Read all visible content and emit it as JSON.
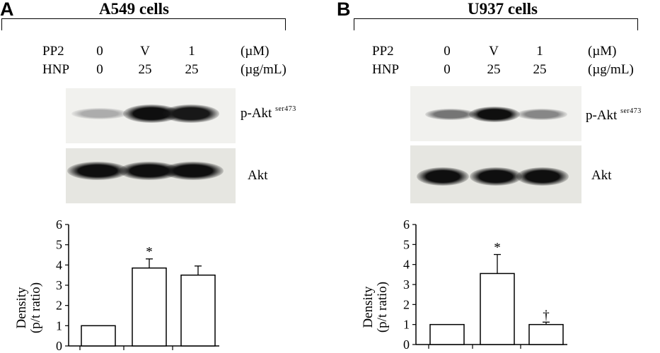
{
  "panels": [
    {
      "letter": "A",
      "title": "A549 cells",
      "treatments": {
        "pp2_label": "PP2",
        "hnp_label": "HNP",
        "pp2_values": [
          "0",
          "V",
          "1"
        ],
        "hnp_values": [
          "0",
          "25",
          "25"
        ],
        "pp2_unit": "(µM)",
        "hnp_unit": "(µg/mL)"
      },
      "blots": {
        "upper_label": "p-Akt",
        "upper_superscript": "ser473",
        "lower_label": "Akt",
        "upper_band_intensity": [
          0.15,
          1.0,
          0.95
        ],
        "lower_band_intensity": [
          1.0,
          1.0,
          1.0
        ]
      }
    },
    {
      "letter": "B",
      "title": "U937 cells",
      "treatments": {
        "pp2_label": "PP2",
        "hnp_label": "HNP",
        "pp2_values": [
          "0",
          "V",
          "1"
        ],
        "hnp_values": [
          "0",
          "25",
          "25"
        ],
        "pp2_unit": "(µM)",
        "hnp_unit": "(µg/mL)"
      },
      "blots": {
        "upper_label": "p-Akt",
        "upper_superscript": "ser473",
        "lower_label": "Akt",
        "upper_band_intensity": [
          0.45,
          1.0,
          0.35
        ],
        "lower_band_intensity": [
          1.0,
          1.0,
          1.0
        ]
      }
    }
  ],
  "chart_data": [
    {
      "type": "bar",
      "ylabel": "Density (p/t ratio)",
      "ylim": [
        0,
        6
      ],
      "yticks": [
        "0",
        "1",
        "2",
        "3",
        "4",
        "5",
        "6"
      ],
      "series": [
        {
          "values": [
            1.0,
            3.85,
            3.5
          ],
          "errors": [
            0,
            0.45,
            0.45
          ]
        }
      ],
      "annotations": [
        "",
        "*",
        ""
      ]
    },
    {
      "type": "bar",
      "ylabel": "Density (p/t ratio)",
      "ylim": [
        0,
        6
      ],
      "yticks": [
        "0",
        "1",
        "2",
        "3",
        "4",
        "5",
        "6"
      ],
      "series": [
        {
          "values": [
            1.0,
            3.55,
            1.0
          ],
          "errors": [
            0,
            0.95,
            0.12
          ]
        }
      ],
      "annotations": [
        "",
        "*",
        "†"
      ]
    }
  ]
}
